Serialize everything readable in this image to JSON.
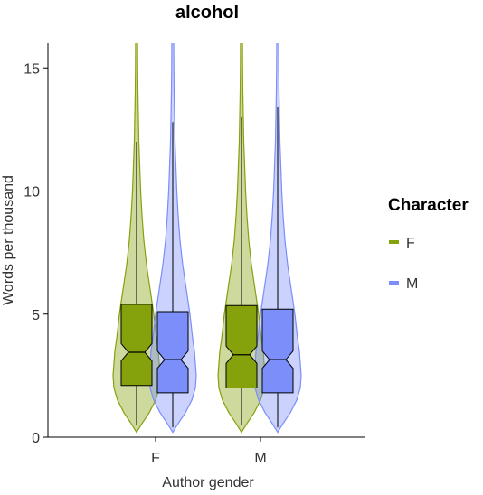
{
  "chart_data": {
    "type": "violin",
    "title": "alcohol",
    "xlabel": "Author gender",
    "ylabel": "Words per thousand",
    "categories": [
      "F",
      "M"
    ],
    "yticks": [
      0,
      5,
      10,
      15
    ],
    "ylim": [
      0,
      16
    ],
    "legend": {
      "title": "Character",
      "position": "right",
      "entries": [
        {
          "label": "F",
          "color": "#85a10b"
        },
        {
          "label": "M",
          "color": "#7b8ef9"
        }
      ]
    },
    "series": [
      {
        "name": "F",
        "color": "#85a10b",
        "groups": [
          {
            "author_gender": "F",
            "violin_top": 16,
            "q1": 2.1,
            "median": 3.45,
            "q3": 5.4,
            "notch_low": 3.1,
            "notch_high": 3.8,
            "whisker_low": 0.5,
            "whisker_high": 12.0
          },
          {
            "author_gender": "M",
            "violin_top": 16,
            "q1": 2.0,
            "median": 3.35,
            "q3": 5.35,
            "notch_low": 3.0,
            "notch_high": 3.7,
            "whisker_low": 0.5,
            "whisker_high": 13.0
          }
        ]
      },
      {
        "name": "M",
        "color": "#7b8ef9",
        "groups": [
          {
            "author_gender": "F",
            "violin_top": 16,
            "q1": 1.8,
            "median": 3.15,
            "q3": 5.1,
            "notch_low": 2.8,
            "notch_high": 3.5,
            "whisker_low": 0.4,
            "whisker_high": 12.8
          },
          {
            "author_gender": "M",
            "violin_top": 16,
            "q1": 1.8,
            "median": 3.15,
            "q3": 5.2,
            "notch_low": 2.8,
            "notch_high": 3.5,
            "whisker_low": 0.4,
            "whisker_high": 13.4
          }
        ]
      }
    ]
  }
}
